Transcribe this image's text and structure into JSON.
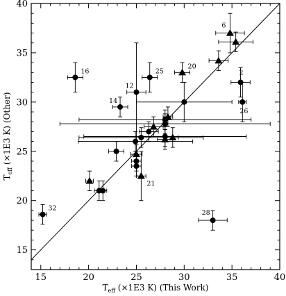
{
  "chart_data": {
    "type": "scatter",
    "title": "",
    "xlabel": {
      "main": "T",
      "sub": "eff",
      "rest": " (×1E3 K) (This Work)"
    },
    "ylabel": {
      "main": "T",
      "sub": "eff",
      "rest": " (×1E3 K) (Other)"
    },
    "xlim": [
      14,
      40
    ],
    "ylim": [
      13,
      40
    ],
    "xticks": [
      15,
      20,
      25,
      30,
      35,
      40
    ],
    "yticks": [
      15,
      20,
      25,
      30,
      35,
      40
    ],
    "grid": false,
    "legend": "none",
    "reference_line": "y = x",
    "series": [
      {
        "marker": "circle",
        "points": [
          {
            "x": 15.2,
            "y": 18.6,
            "xerr": 0.4,
            "yerr": 1.0,
            "label": "32"
          },
          {
            "x": 18.6,
            "y": 32.5,
            "xerr": 0.8,
            "yerr": 1.5,
            "label": "16"
          },
          {
            "x": 21.1,
            "y": 21.0,
            "xerr": 0.5,
            "yerr": 1.0,
            "label": ""
          },
          {
            "x": 21.5,
            "y": 21.0,
            "xerr": 0.4,
            "yerr": 1.0,
            "label": ""
          },
          {
            "x": 22.9,
            "y": 25.0,
            "xerr": 0.8,
            "yerr": 1.0,
            "label": ""
          },
          {
            "x": 23.3,
            "y": 29.5,
            "xerr": 0.8,
            "yerr": 1.0,
            "label": "14"
          },
          {
            "x": 25.0,
            "y": 31.0,
            "xerr": 1.0,
            "yerr": 5.0,
            "label": "12"
          },
          {
            "x": 24.9,
            "y": 26.0,
            "xerr": 6.0,
            "yerr": 1.0,
            "label": ""
          },
          {
            "x": 25.0,
            "y": 24.0,
            "xerr": 0.5,
            "yerr": 1.0,
            "label": ""
          },
          {
            "x": 25.0,
            "y": 23.5,
            "xerr": 0.5,
            "yerr": 1.0,
            "label": ""
          },
          {
            "x": 25.5,
            "y": 26.4,
            "xerr": 6.5,
            "yerr": 1.0,
            "label": ""
          },
          {
            "x": 26.4,
            "y": 32.5,
            "xerr": 0.8,
            "yerr": 1.5,
            "label": "25"
          },
          {
            "x": 26.3,
            "y": 27.0,
            "xerr": 1.0,
            "yerr": 1.0,
            "label": ""
          },
          {
            "x": 28.0,
            "y": 28.2,
            "xerr": 9.0,
            "yerr": 1.0,
            "label": ""
          },
          {
            "x": 28.0,
            "y": 27.8,
            "xerr": 11.0,
            "yerr": 1.0,
            "label": ""
          },
          {
            "x": 28.0,
            "y": 26.5,
            "xerr": 8.5,
            "yerr": 1.0,
            "label": ""
          },
          {
            "x": 30.0,
            "y": 30.0,
            "xerr": 5.0,
            "yerr": 2.0,
            "label": ""
          },
          {
            "x": 33.0,
            "y": 18.0,
            "xerr": 1.5,
            "yerr": 1.0,
            "label": "28"
          },
          {
            "x": 35.9,
            "y": 32.0,
            "xerr": 1.0,
            "yerr": 1.5,
            "label": "2"
          },
          {
            "x": 36.1,
            "y": 30.0,
            "xerr": 0.4,
            "yerr": 2.0,
            "label": "26"
          }
        ]
      },
      {
        "marker": "triangle",
        "points": [
          {
            "x": 20.1,
            "y": 22.0,
            "xerr": 0.4,
            "yerr": 1.0,
            "label": ""
          },
          {
            "x": 25.0,
            "y": 24.7,
            "xerr": 0.6,
            "yerr": 1.0,
            "label": ""
          },
          {
            "x": 25.5,
            "y": 22.5,
            "xerr": 0.5,
            "yerr": 2.5,
            "label": "21"
          },
          {
            "x": 26.8,
            "y": 27.5,
            "xerr": 1.0,
            "yerr": 1.0,
            "label": ""
          },
          {
            "x": 28.0,
            "y": 26.2,
            "xerr": 0.8,
            "yerr": 1.0,
            "label": ""
          },
          {
            "x": 28.3,
            "y": 28.5,
            "xerr": 0.5,
            "yerr": 1.0,
            "label": ""
          },
          {
            "x": 28.8,
            "y": 26.4,
            "xerr": 0.6,
            "yerr": 1.0,
            "label": ""
          },
          {
            "x": 29.8,
            "y": 33.0,
            "xerr": 0.8,
            "yerr": 1.0,
            "label": "20"
          },
          {
            "x": 33.6,
            "y": 34.2,
            "xerr": 1.0,
            "yerr": 1.0,
            "label": ""
          },
          {
            "x": 34.8,
            "y": 37.0,
            "xerr": 1.5,
            "yerr": 2.0,
            "label": "6"
          },
          {
            "x": 35.4,
            "y": 36.1,
            "xerr": 1.8,
            "yerr": 1.0,
            "label": ""
          }
        ]
      }
    ]
  }
}
